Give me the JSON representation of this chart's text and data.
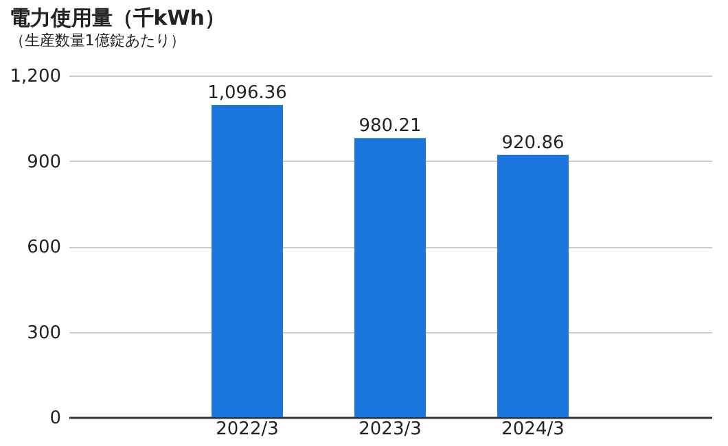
{
  "chart_data": {
    "type": "bar",
    "title": "電力使用量（千kWh）",
    "subtitle": "（生産数量1億錠あたり）",
    "categories": [
      "2022/3",
      "2023/3",
      "2024/3"
    ],
    "values": [
      1096.36,
      980.21,
      920.86
    ],
    "value_labels": [
      "1,096.36",
      "980.21",
      "920.86"
    ],
    "color": "#1a75dc",
    "ylim": [
      0,
      1200
    ],
    "yticks": [
      0,
      300,
      600,
      900,
      {
        "value": 1200,
        "label": "1,200"
      }
    ],
    "grid": "y"
  }
}
